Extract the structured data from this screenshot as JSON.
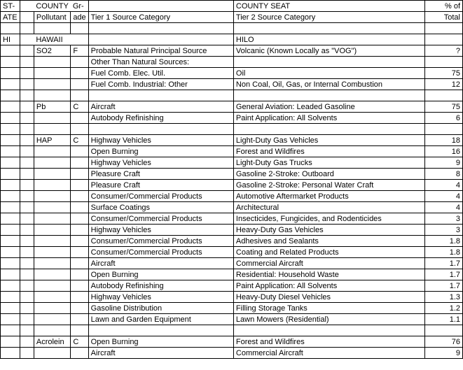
{
  "headers": {
    "state": "ST-",
    "ate": "ATE",
    "county": "COUNTY",
    "county_seat": "COUNTY SEAT",
    "pollutant": "Pollutant",
    "grade1": "Gr-",
    "grade2": "ade",
    "tier1": "Tier 1 Source Category",
    "tier2": "Tier 2 Source Category",
    "pct": "% of",
    "total": "Total"
  },
  "county_row": {
    "state": "HI",
    "county": "HAWAII",
    "seat": "HILO"
  },
  "groups": [
    {
      "pollutant": "SO2",
      "grade": "F",
      "rows": [
        {
          "t1": "Probable Natural Principal Source",
          "t2": "Volcanic (Known Locally as \"VOG\")",
          "pct": "?"
        },
        {
          "t1": "Other Than Natural Sources:",
          "t2": "",
          "pct": ""
        },
        {
          "t1": "Fuel Comb. Elec. Util.",
          "t2": "Oil",
          "pct": "75"
        },
        {
          "t1": "Fuel Comb. Industrial: Other",
          "t2": "Non Coal, Oil, Gas, or Internal Combustion",
          "pct": "12"
        }
      ]
    },
    {
      "pollutant": "Pb",
      "grade": "C",
      "rows": [
        {
          "t1": "Aircraft",
          "t2": "General Aviation: Leaded Gasoline",
          "pct": "75"
        },
        {
          "t1": "Autobody Refinishing",
          "t2": "Paint Application: All Solvents",
          "pct": "6"
        }
      ]
    },
    {
      "pollutant": "HAP",
      "grade": "C",
      "rows": [
        {
          "t1": "Highway Vehicles",
          "t2": "Light-Duty Gas Vehicles",
          "pct": "18"
        },
        {
          "t1": "Open Burning",
          "t2": "Forest and Wildfires",
          "pct": "16"
        },
        {
          "t1": "Highway Vehicles",
          "t2": "Light-Duty Gas Trucks",
          "pct": "9"
        },
        {
          "t1": "Pleasure Craft",
          "t2": "Gasoline 2-Stroke: Outboard",
          "pct": "8"
        },
        {
          "t1": "Pleasure Craft",
          "t2": "Gasoline 2-Stroke: Personal Water Craft",
          "pct": "4"
        },
        {
          "t1": "Consumer/Commercial Products",
          "t2": "Automotive Aftermarket Products",
          "pct": "4"
        },
        {
          "t1": "Surface Coatings",
          "t2": "Architectural",
          "pct": "4"
        },
        {
          "t1": "Consumer/Commercial Products",
          "t2": "Insecticides, Fungicides, and Rodenticides",
          "pct": "3"
        },
        {
          "t1": "Highway Vehicles",
          "t2": "Heavy-Duty Gas Vehicles",
          "pct": "3"
        },
        {
          "t1": "Consumer/Commercial Products",
          "t2": "Adhesives and Sealants",
          "pct": "1.8"
        },
        {
          "t1": "Consumer/Commercial Products",
          "t2": "Coating and Related Products",
          "pct": "1.8"
        },
        {
          "t1": "Aircraft",
          "t2": "Commercial Aircraft",
          "pct": "1.7"
        },
        {
          "t1": "Open Burning",
          "t2": "Residential: Household Waste",
          "pct": "1.7"
        },
        {
          "t1": "Autobody Refinishing",
          "t2": "Paint Application: All Solvents",
          "pct": "1.7"
        },
        {
          "t1": "Highway Vehicles",
          "t2": "Heavy-Duty Diesel Vehicles",
          "pct": "1.3"
        },
        {
          "t1": "Gasoline Distribution",
          "t2": "Filling Storage Tanks",
          "pct": "1.2"
        },
        {
          "t1": "Lawn and Garden Equipment",
          "t2": "Lawn Mowers (Residential)",
          "pct": "1.1"
        }
      ]
    },
    {
      "pollutant": "Acrolein",
      "grade": "C",
      "rows": [
        {
          "t1": "Open Burning",
          "t2": "Forest and Wildfires",
          "pct": "76"
        },
        {
          "t1": "Aircraft",
          "t2": "Commercial Aircraft",
          "pct": "9"
        }
      ]
    }
  ]
}
